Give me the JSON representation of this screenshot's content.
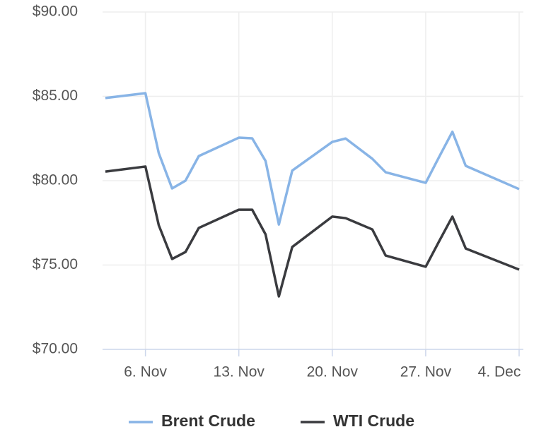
{
  "chart_data": {
    "type": "line",
    "x": [
      "3. Nov",
      "6. Nov",
      "7. Nov",
      "8. Nov",
      "9. Nov",
      "10. Nov",
      "13. Nov",
      "14. Nov",
      "15. Nov",
      "16. Nov",
      "17. Nov",
      "20. Nov",
      "21. Nov",
      "23. Nov",
      "24. Nov",
      "27. Nov",
      "28. Nov",
      "29. Nov",
      "30. Nov",
      "4. Dec"
    ],
    "series": [
      {
        "name": "Brent Crude",
        "color": "#88b4e6",
        "values": [
          84.9,
          85.19,
          81.63,
          79.54,
          80.0,
          81.46,
          82.55,
          82.51,
          81.17,
          77.4,
          80.6,
          82.3,
          82.5,
          81.3,
          80.5,
          79.87,
          81.4,
          82.9,
          80.88,
          79.5
        ]
      },
      {
        "name": "WTI Crude",
        "color": "#3a3b3f",
        "values": [
          80.54,
          80.84,
          77.36,
          75.36,
          75.77,
          77.2,
          78.28,
          78.28,
          76.82,
          73.14,
          76.07,
          77.87,
          77.78,
          77.11,
          75.56,
          74.9,
          76.4,
          77.87,
          75.98,
          74.73
        ]
      }
    ],
    "xlim": [
      "3. Nov",
      "4. Dec"
    ],
    "xticks": [
      "6. Nov",
      "13. Nov",
      "20. Nov",
      "27. Nov",
      "4. Dec"
    ],
    "ylim": [
      70,
      90
    ],
    "yticks": [
      {
        "value": 70,
        "label": "$70.00"
      },
      {
        "value": 75,
        "label": "$75.00"
      },
      {
        "value": 80,
        "label": "$80.00"
      },
      {
        "value": 85,
        "label": "$85.00"
      },
      {
        "value": 90,
        "label": "$90.00"
      }
    ],
    "grid": true,
    "legend": "bottom"
  }
}
